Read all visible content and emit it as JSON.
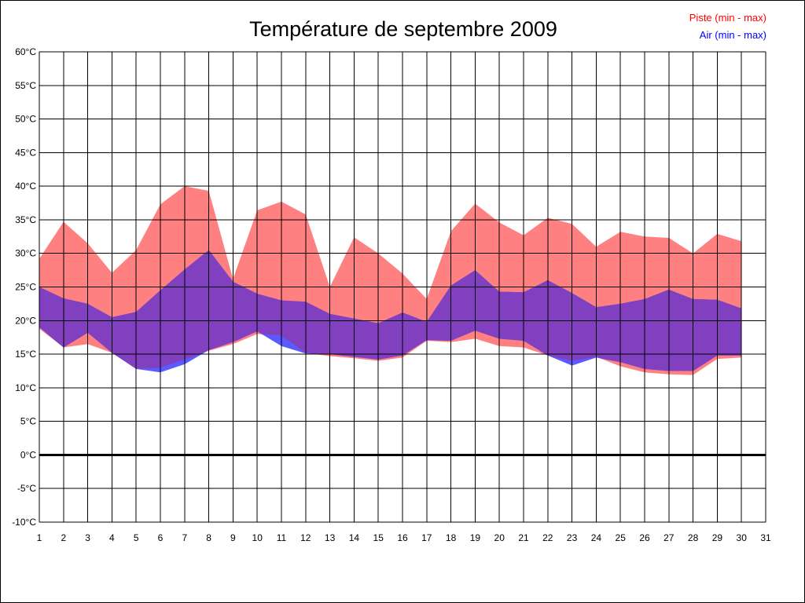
{
  "chart_data": {
    "type": "area",
    "title": "Température de septembre 2009",
    "xlabel": "",
    "ylabel": "",
    "x": [
      1,
      2,
      3,
      4,
      5,
      6,
      7,
      8,
      9,
      10,
      11,
      12,
      13,
      14,
      15,
      16,
      17,
      18,
      19,
      20,
      21,
      22,
      23,
      24,
      25,
      26,
      27,
      28,
      29,
      30
    ],
    "xlim": [
      1,
      31
    ],
    "ylim": [
      -10,
      60
    ],
    "ytick_step": 5,
    "ytick_suffix": "°C",
    "grid": true,
    "legend_position": "top-right",
    "series": [
      {
        "name": "Piste (min - max)",
        "color": "#ff0000",
        "fill": "#ff8080",
        "min": [
          18.8,
          16.0,
          16.5,
          15.2,
          12.8,
          13.0,
          14.2,
          15.5,
          16.5,
          18.0,
          17.8,
          15.2,
          14.7,
          14.4,
          14.0,
          14.5,
          17.0,
          16.8,
          17.3,
          16.2,
          16.0,
          14.8,
          14.0,
          14.6,
          13.2,
          12.3,
          12.0,
          11.9,
          14.3,
          14.5
        ],
        "max": [
          29.2,
          34.7,
          31.5,
          27.1,
          30.5,
          37.3,
          40.0,
          39.3,
          26.2,
          36.4,
          37.7,
          35.8,
          25.0,
          32.4,
          30.0,
          27.0,
          23.2,
          33.3,
          37.4,
          34.6,
          32.7,
          35.3,
          34.4,
          31.0,
          33.2,
          32.5,
          32.3,
          30.0,
          32.9,
          31.8
        ]
      },
      {
        "name": "Air (min - max)",
        "color": "#0000ff",
        "fill": "#5a5aff",
        "min": [
          19.0,
          16.0,
          18.2,
          15.2,
          12.8,
          12.3,
          13.5,
          15.6,
          16.8,
          18.4,
          16.2,
          15.1,
          15.0,
          14.6,
          14.2,
          14.8,
          17.1,
          17.0,
          18.5,
          17.3,
          17.0,
          14.8,
          13.3,
          14.5,
          13.8,
          12.8,
          12.5,
          12.5,
          14.8,
          14.8
        ],
        "max": [
          25.0,
          23.3,
          22.5,
          20.5,
          21.3,
          24.5,
          27.6,
          30.5,
          25.8,
          24.0,
          23.0,
          22.8,
          21.0,
          20.3,
          19.6,
          21.2,
          19.8,
          25.2,
          27.5,
          24.3,
          24.2,
          26.0,
          24.1,
          22.0,
          22.5,
          23.2,
          24.6,
          23.2,
          23.1,
          21.8
        ]
      }
    ],
    "overlap_fill": "#8040c0"
  }
}
